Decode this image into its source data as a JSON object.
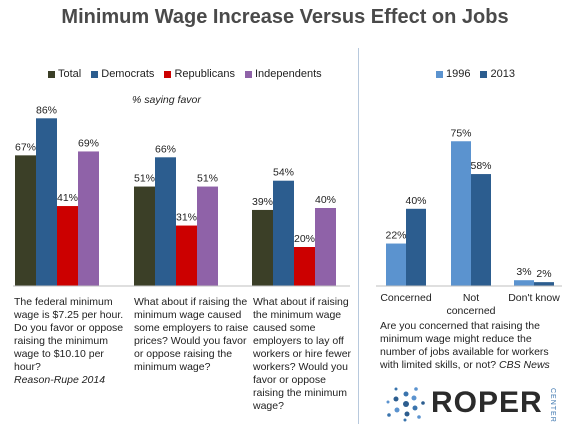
{
  "title": "Minimum Wage Increase Versus Effect on Jobs",
  "subnote": "% saying favor",
  "colors": {
    "total": "#3b3f27",
    "democrats": "#2c5d8f",
    "republicans": "#cc0000",
    "independents": "#8f62a8",
    "y1996": "#5b93cf",
    "y2013": "#2c5d8f"
  },
  "left_legend": [
    "Total",
    "Democrats",
    "Republicans",
    "Independents"
  ],
  "right_legend": [
    "1996",
    "2013"
  ],
  "questions": {
    "q1": {
      "text": "The federal minimum wage is $7.25 per hour. Do you favor or oppose raising the minimum wage to $10.10 per hour?",
      "source": "Reason-Rupe 2014"
    },
    "q2": {
      "text": "What about if raising the minimum wage caused some employers to raise prices? Would you favor or oppose raising the minimum wage?"
    },
    "q3": {
      "text": "What about if raising the minimum wage caused some employers to lay off workers or hire fewer workers? Would you favor or oppose raising the minimum wage?"
    },
    "q4": {
      "text": "Are you concerned that raising the minimum wage might reduce the number of jobs available for workers with limited skills, or not?",
      "source": "CBS News"
    }
  },
  "logo": {
    "text": "ROPER",
    "sub": "CENTER"
  },
  "chart_data": [
    {
      "type": "bar",
      "ylabel": "% saying favor",
      "ylim": [
        0,
        100
      ],
      "groups": 3,
      "series": [
        {
          "name": "Total",
          "values": [
            67,
            51,
            39
          ],
          "labels": [
            "67%",
            "51%",
            "39%"
          ]
        },
        {
          "name": "Democrats",
          "values": [
            86,
            66,
            54
          ],
          "labels": [
            "86%",
            "66%",
            "54%"
          ]
        },
        {
          "name": "Republicans",
          "values": [
            41,
            31,
            20
          ],
          "labels": [
            "41%",
            "31%",
            "20%"
          ]
        },
        {
          "name": "Independents",
          "values": [
            69,
            51,
            40
          ],
          "labels": [
            "69%",
            "51%",
            "40%"
          ]
        }
      ]
    },
    {
      "type": "bar",
      "ylim": [
        0,
        100
      ],
      "categories": [
        "Concerned",
        "Not concerned",
        "Don't know"
      ],
      "series": [
        {
          "name": "1996",
          "values": [
            22,
            75,
            3
          ],
          "labels": [
            "22%",
            "75%",
            "3%"
          ]
        },
        {
          "name": "2013",
          "values": [
            40,
            58,
            2
          ],
          "labels": [
            "40%",
            "58%",
            "2%"
          ]
        }
      ]
    }
  ]
}
